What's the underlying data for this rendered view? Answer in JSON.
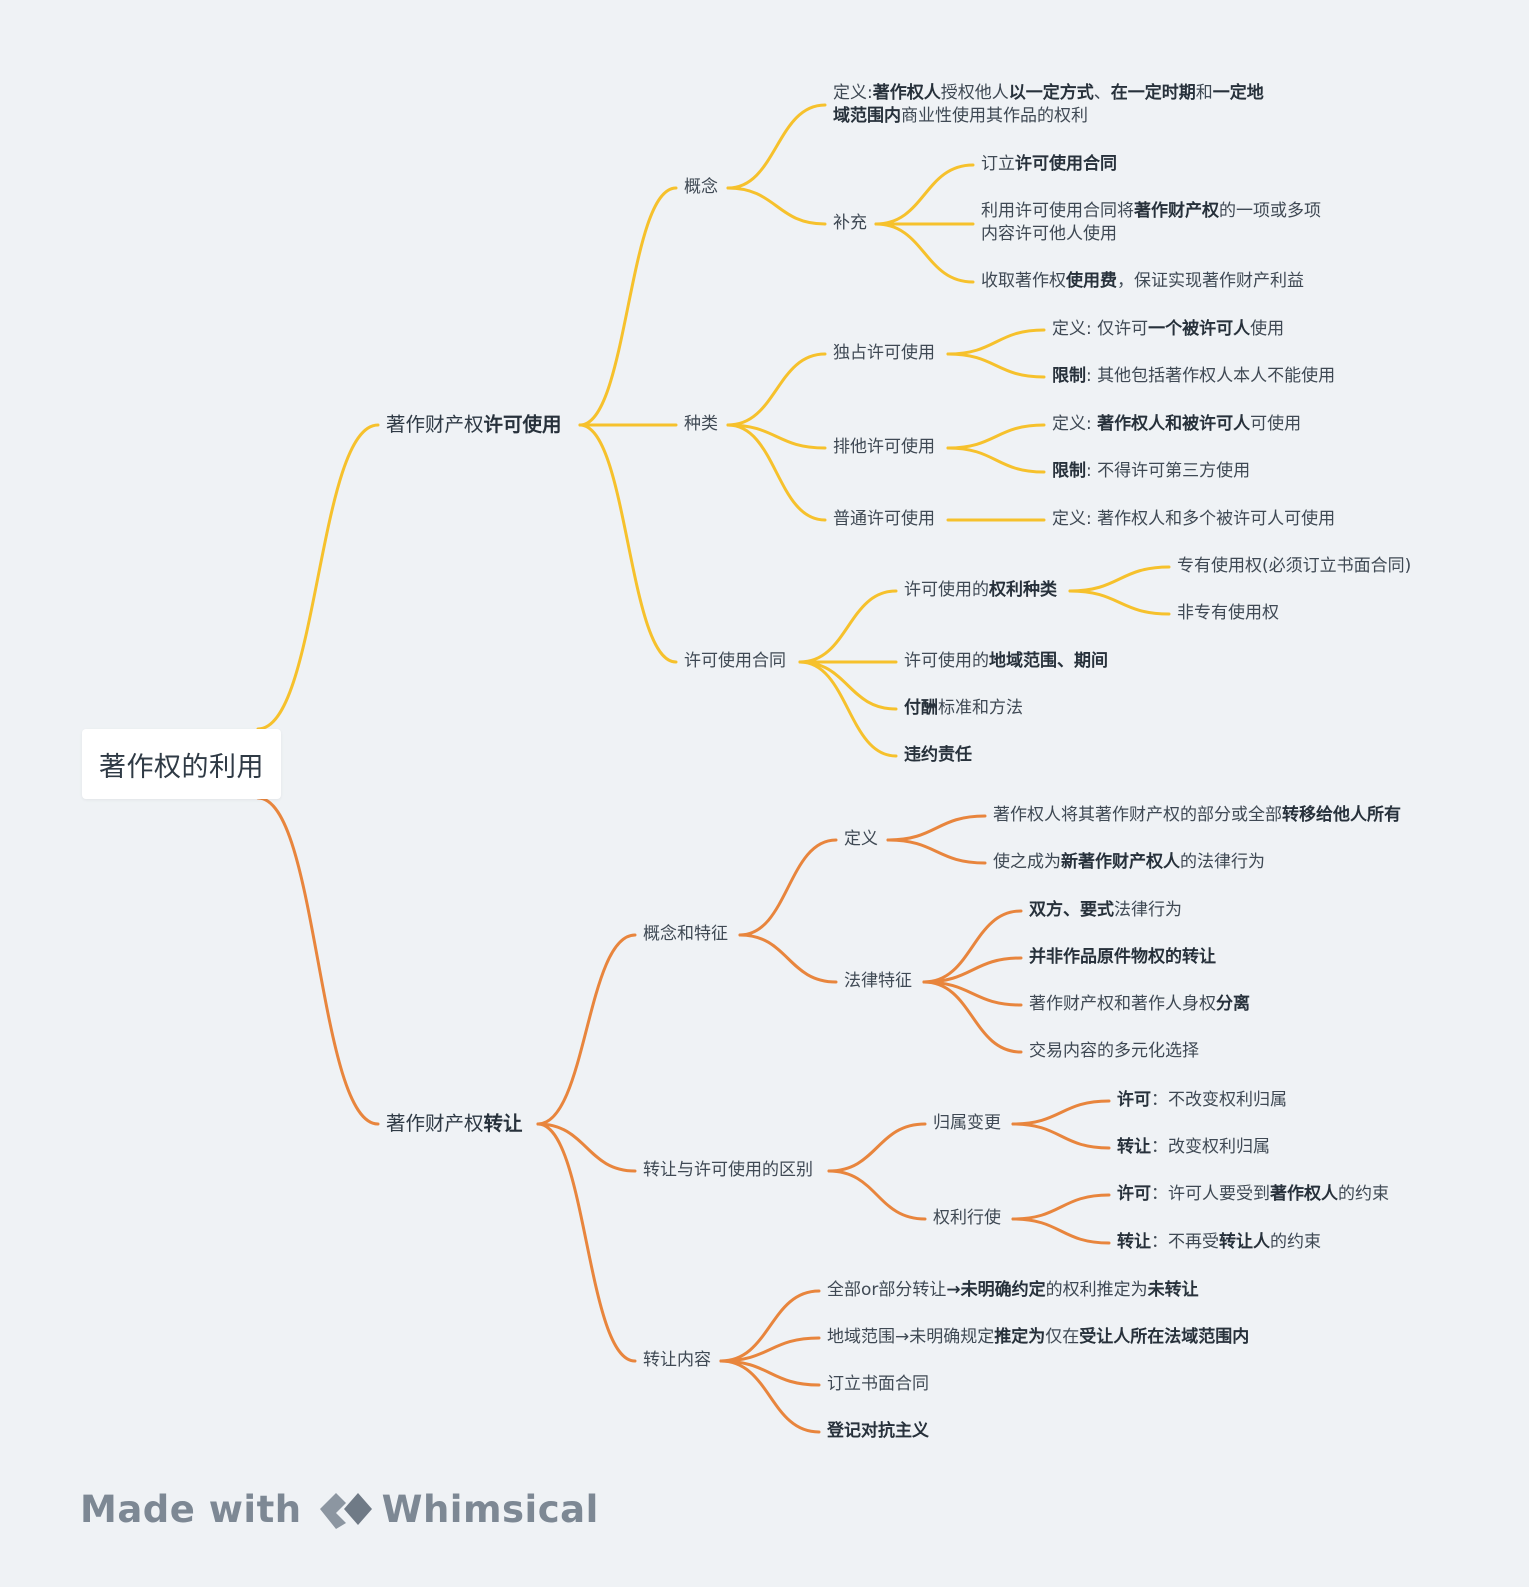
{
  "colors": {
    "background": "#eff2f5",
    "branch_license": "#f6c12c",
    "branch_transfer": "#e8853d",
    "watermark": "#7d8894"
  },
  "root": {
    "title": "著作权的利用"
  },
  "license": {
    "title": [
      "著作财产权",
      "**许可使用**"
    ],
    "concept": {
      "title": [
        "概念"
      ],
      "definition": [
        "定义:",
        "**著作权人**",
        "授权他人",
        "**以一定方式**",
        "、",
        "**在一定时期**",
        "和",
        "**一定地域范围内**",
        "商业性使用其作品的权利"
      ],
      "supplement": {
        "title": [
          "补充"
        ],
        "items": [
          [
            "订立",
            "**许可使用合同**"
          ],
          [
            "利用许可使用合同将",
            "**著作财产权**",
            "的一项或多项内容许可他人使用"
          ],
          [
            "收取著作权",
            "**使用费**",
            "，保证实现著作财产利益"
          ]
        ]
      }
    },
    "types": {
      "title": [
        "种类"
      ],
      "exclusive": {
        "title": [
          "独占许可使用"
        ],
        "def": [
          "定义: 仅许可",
          "**一个被许可人**",
          "使用"
        ],
        "limit": [
          "**限制**",
          ": 其他包括著作权人本人不能使用"
        ]
      },
      "sole": {
        "title": [
          "排他许可使用"
        ],
        "def": [
          "定义: ",
          "**著作权人和被许可人**",
          "可使用"
        ],
        "limit": [
          "**限制**",
          ": 不得许可第三方使用"
        ]
      },
      "general": {
        "title": [
          "普通许可使用"
        ],
        "def": [
          "定义: 著作权人和多个被许可人可使用"
        ]
      }
    },
    "contract": {
      "title": [
        "许可使用合同"
      ],
      "right_kinds": {
        "title": [
          "许可使用的",
          "**权利种类**"
        ],
        "items": [
          [
            "专有使用权(必须订立书面合同)"
          ],
          [
            "非专有使用权"
          ]
        ]
      },
      "scope": [
        "许可使用的",
        "**地域范围、期间**"
      ],
      "payment": [
        "**付酬**",
        "标准和方法"
      ],
      "liability": [
        "**违约责任**"
      ]
    }
  },
  "transfer": {
    "title": [
      "著作财产权",
      "**转让**"
    ],
    "concept": {
      "title": [
        "概念和特征"
      ],
      "definition": {
        "title": [
          "定义"
        ],
        "items": [
          [
            "著作权人将其著作财产权的部分或全部",
            "**转移给他人所有**"
          ],
          [
            "使之成为",
            "**新著作财产权人**",
            "的法律行为"
          ]
        ]
      },
      "features": {
        "title": [
          "法律特征"
        ],
        "items": [
          [
            "**双方、要式**",
            "法律行为"
          ],
          [
            "**并非作品原件物权的转让**"
          ],
          [
            "著作财产权和著作人身权",
            "**分离**"
          ],
          [
            "交易内容的多元化选择"
          ]
        ]
      }
    },
    "difference": {
      "title": [
        "转让与许可使用的区别"
      ],
      "ownership": {
        "title": [
          "归属变更"
        ],
        "items": [
          [
            "**许可**",
            "：不改变权利归属"
          ],
          [
            "**转让**",
            "：改变权利归属"
          ]
        ]
      },
      "exercise": {
        "title": [
          "权利行使"
        ],
        "items": [
          [
            "**许可**",
            "：许可人要受到",
            "**著作权人**",
            "的约束"
          ],
          [
            "**转让**",
            "：不再受",
            "**转让人**",
            "的约束"
          ]
        ]
      }
    },
    "content": {
      "title": [
        "转让内容"
      ],
      "items": [
        [
          "全部or部分转让",
          "**→未明确约定**",
          "的权利推定为",
          "**未转让**"
        ],
        [
          "地域范围→未明确规定",
          "**推定为**",
          "仅在",
          "**受让人所在法域范围内**"
        ],
        [
          "订立书面合同"
        ],
        [
          "**登记对抗主义**"
        ]
      ]
    }
  },
  "watermark": {
    "prefix": "Made with",
    "brand": "Whimsical",
    "logo_icon": "whimsical-logo-icon"
  }
}
